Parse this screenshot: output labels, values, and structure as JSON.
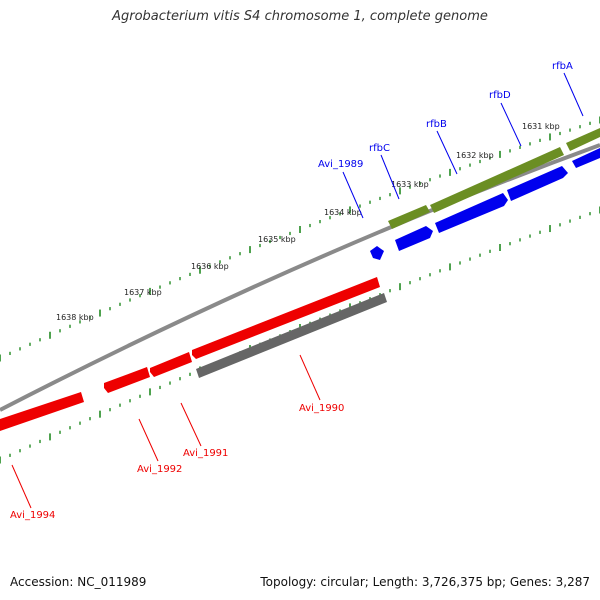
{
  "title": "Agrobacterium vitis S4 chromosome 1, complete genome",
  "accession": "Accession: NC_011989",
  "summary": "Topology: circular; Length: 3,726,375 bp; Genes: 3,287",
  "colors": {
    "forward_gene": "#0000ee",
    "reverse_gene": "#ee0000",
    "forward_other": "#6b8e23",
    "reverse_other": "#666666",
    "backbone": "#888888",
    "ticks": "#228b22"
  },
  "kbp_ticks": [
    "1631 kbp",
    "1632 kbp",
    "1633 kbp",
    "1634 kbp",
    "1635 kbp",
    "1636 kbp",
    "1637 kbp",
    "1638 kbp"
  ],
  "forward_labels": [
    "rfbA",
    "rfbD",
    "rfbB",
    "rfbC",
    "Avi_1989"
  ],
  "reverse_labels": [
    "Avi_1990",
    "Avi_1991",
    "Avi_1992",
    "Avi_1994"
  ]
}
